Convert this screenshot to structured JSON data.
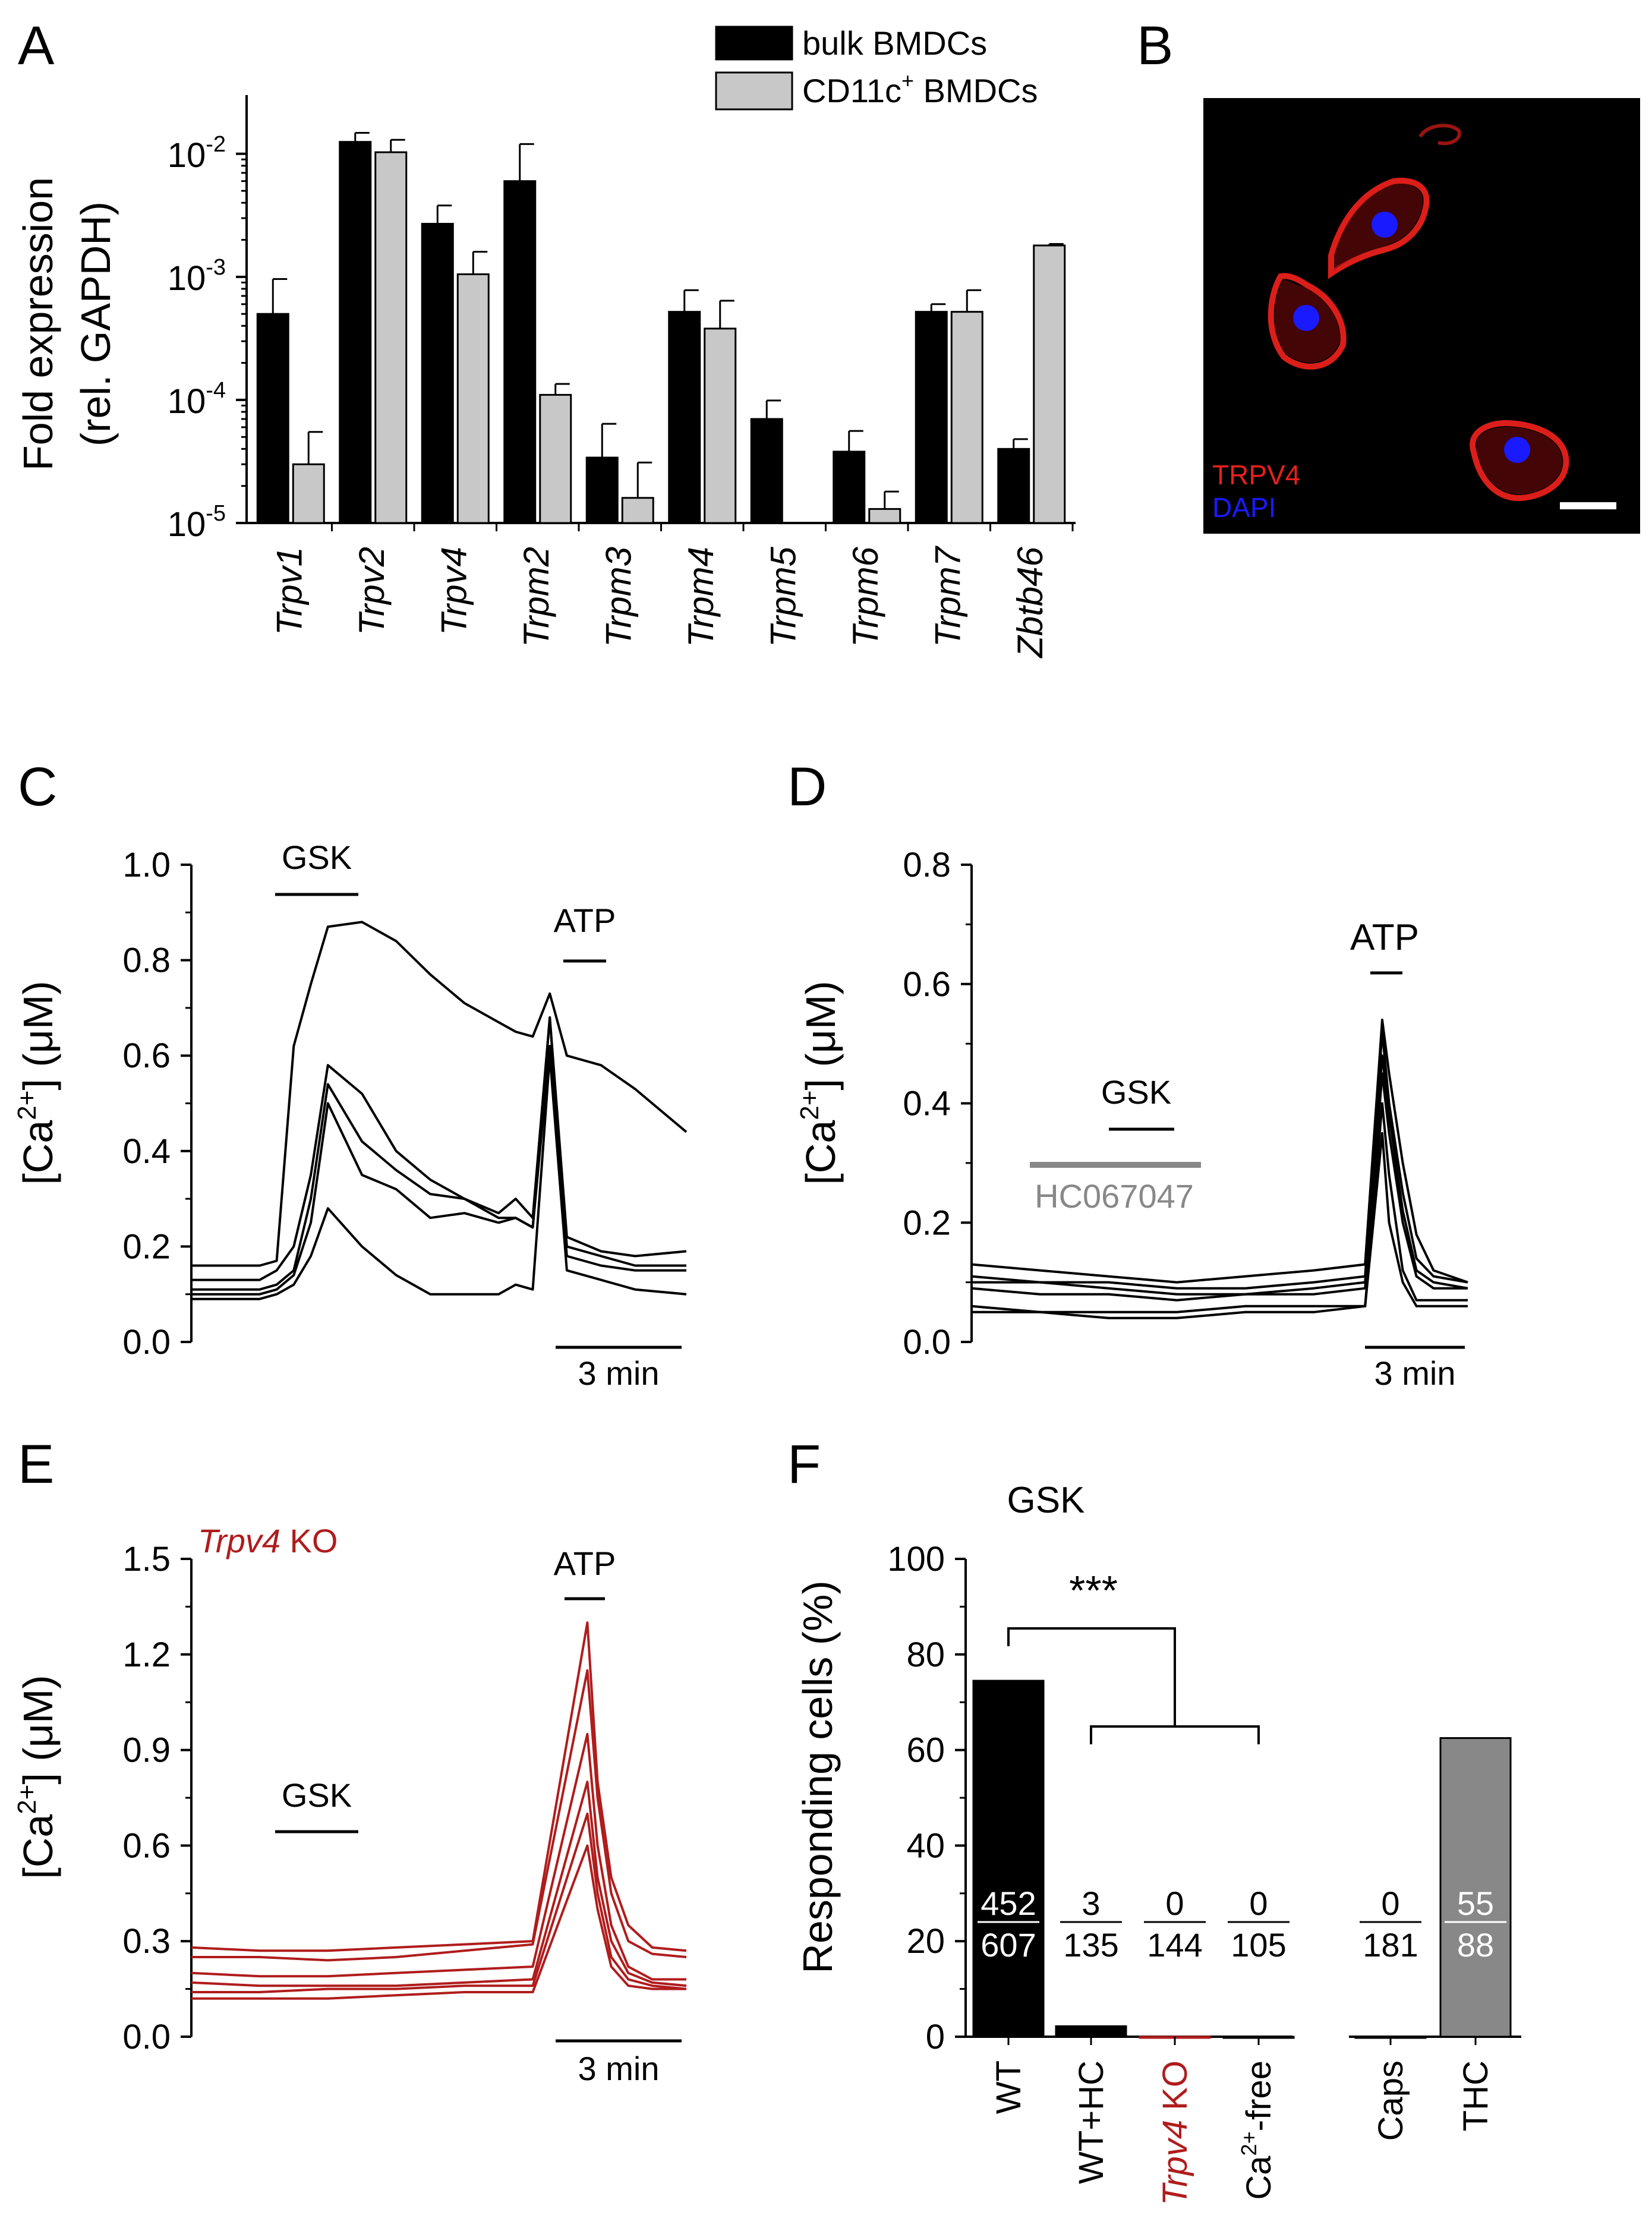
{
  "panels": {
    "A": "A",
    "B": "B",
    "C": "C",
    "D": "D",
    "E": "E",
    "F": "F"
  },
  "chart_data": [
    {
      "panel": "A",
      "type": "bar",
      "ylabel_line1": "Fold expression",
      "ylabel_line2": "(rel. GAPDH)",
      "yscale": "log",
      "ylim": [
        1e-05,
        0.03
      ],
      "yticks": [
        {
          "base": "10",
          "exp": "-5",
          "value": 1e-05
        },
        {
          "base": "10",
          "exp": "-4",
          "value": 0.0001
        },
        {
          "base": "10",
          "exp": "-3",
          "value": 0.001
        },
        {
          "base": "10",
          "exp": "-2",
          "value": 0.01
        }
      ],
      "categories": [
        "Trpv1",
        "Trpv2",
        "Trpv4",
        "Trpm2",
        "Trpm3",
        "Trpm4",
        "Trpm5",
        "Trpm6",
        "Trpm7",
        "Zbtb46"
      ],
      "legend": {
        "position": "top-right",
        "entry1": "bulk BMDCs",
        "entry2_pre": "CD11c",
        "entry2_sup": "+",
        "entry2_post": " BMDCs"
      },
      "series": [
        {
          "name": "bulk BMDCs",
          "color": "#000000",
          "values": [
            0.0005,
            0.0125,
            0.0027,
            0.006,
            3.4e-05,
            0.00052,
            7e-05,
            3.8e-05,
            0.00052,
            4e-05
          ],
          "errors": [
            0.00096,
            0.0148,
            0.0038,
            0.012,
            6.4e-05,
            0.00078,
            9.9e-05,
            5.6e-05,
            0.0006,
            4.8e-05
          ]
        },
        {
          "name": "CD11c+ BMDCs",
          "color": "#c8c8c8",
          "values": [
            3e-05,
            0.0103,
            0.00105,
            0.00011,
            1.6e-05,
            0.00038,
            null,
            1.3e-05,
            0.00052,
            0.0018
          ],
          "errors": [
            5.5e-05,
            0.013,
            0.0016,
            0.000135,
            3.1e-05,
            0.00064,
            null,
            1.8e-05,
            0.00078,
            0.00185
          ]
        }
      ]
    },
    {
      "panel": "C",
      "type": "line",
      "ylabel_pre": "[Ca",
      "ylabel_sup": "2+",
      "ylabel_post": "] (μM)",
      "ylim": [
        0,
        1.0
      ],
      "yticks": [
        "0.0",
        "0.2",
        "0.4",
        "0.6",
        "0.8",
        "1.0"
      ],
      "scale_bar": "3 min",
      "stimuli": [
        {
          "label": "GSK"
        },
        {
          "label": "ATP"
        }
      ],
      "color": "#000000",
      "x_minutes": [
        0,
        2,
        2.5,
        3,
        3.5,
        4,
        5,
        6,
        7,
        8,
        9,
        9.5,
        10,
        10.5,
        11,
        12,
        13,
        14.5
      ],
      "series": [
        [
          0.16,
          0.16,
          0.17,
          0.62,
          0.75,
          0.87,
          0.88,
          0.84,
          0.77,
          0.71,
          0.67,
          0.65,
          0.64,
          0.73,
          0.6,
          0.58,
          0.53,
          0.44
        ],
        [
          0.13,
          0.13,
          0.15,
          0.2,
          0.35,
          0.58,
          0.52,
          0.4,
          0.34,
          0.3,
          0.27,
          0.3,
          0.26,
          0.68,
          0.2,
          0.18,
          0.16,
          0.16
        ],
        [
          0.11,
          0.11,
          0.12,
          0.15,
          0.3,
          0.54,
          0.42,
          0.36,
          0.31,
          0.3,
          0.26,
          0.26,
          0.24,
          0.68,
          0.22,
          0.19,
          0.18,
          0.19
        ],
        [
          0.1,
          0.1,
          0.11,
          0.14,
          0.25,
          0.5,
          0.35,
          0.32,
          0.26,
          0.27,
          0.25,
          0.26,
          0.24,
          0.62,
          0.18,
          0.16,
          0.15,
          0.15
        ],
        [
          0.09,
          0.09,
          0.1,
          0.12,
          0.18,
          0.28,
          0.2,
          0.14,
          0.1,
          0.1,
          0.1,
          0.12,
          0.11,
          0.6,
          0.15,
          0.13,
          0.11,
          0.1
        ]
      ]
    },
    {
      "panel": "D",
      "type": "line",
      "ylabel_pre": "[Ca",
      "ylabel_sup": "2+",
      "ylabel_post": "] (μM)",
      "ylim": [
        0,
        0.8
      ],
      "yticks": [
        "0.0",
        "0.2",
        "0.4",
        "0.6",
        "0.8"
      ],
      "scale_bar": "3 min",
      "stimuli": [
        {
          "label": "GSK"
        },
        {
          "label": "HC067047"
        },
        {
          "label": "ATP"
        }
      ],
      "color": "#000000",
      "x_minutes": [
        0,
        2,
        4,
        6,
        8,
        10,
        11.5,
        12,
        12.2,
        12.6,
        13,
        13.5,
        14.5
      ],
      "series": [
        [
          0.13,
          0.12,
          0.11,
          0.1,
          0.11,
          0.12,
          0.13,
          0.54,
          0.45,
          0.3,
          0.18,
          0.12,
          0.1
        ],
        [
          0.11,
          0.1,
          0.1,
          0.09,
          0.09,
          0.1,
          0.11,
          0.52,
          0.4,
          0.25,
          0.14,
          0.11,
          0.1
        ],
        [
          0.1,
          0.1,
          0.09,
          0.08,
          0.08,
          0.09,
          0.1,
          0.48,
          0.38,
          0.22,
          0.12,
          0.1,
          0.09
        ],
        [
          0.09,
          0.08,
          0.08,
          0.07,
          0.08,
          0.08,
          0.09,
          0.45,
          0.35,
          0.2,
          0.11,
          0.09,
          0.09
        ],
        [
          0.06,
          0.05,
          0.05,
          0.05,
          0.06,
          0.06,
          0.06,
          0.4,
          0.28,
          0.12,
          0.07,
          0.07,
          0.07
        ],
        [
          0.05,
          0.05,
          0.04,
          0.04,
          0.05,
          0.05,
          0.06,
          0.35,
          0.2,
          0.1,
          0.06,
          0.06,
          0.06
        ]
      ]
    },
    {
      "panel": "E",
      "type": "line",
      "annotation_italic": "Trpv4",
      "annotation_rest": " KO",
      "ylabel_pre": "[Ca",
      "ylabel_sup": "2+",
      "ylabel_post": "] (μM)",
      "ylim": [
        0,
        1.5
      ],
      "yticks": [
        "0.0",
        "0.3",
        "0.6",
        "0.9",
        "1.2",
        "1.5"
      ],
      "scale_bar": "3 min",
      "stimuli": [
        {
          "label": "GSK"
        },
        {
          "label": "ATP"
        }
      ],
      "color": "#b01c1c",
      "x_minutes": [
        0,
        2,
        4,
        6,
        8,
        10,
        11.6,
        11.9,
        12.3,
        12.8,
        13.5,
        14.5
      ],
      "series": [
        [
          0.28,
          0.27,
          0.27,
          0.28,
          0.29,
          0.3,
          1.3,
          0.8,
          0.5,
          0.35,
          0.28,
          0.27
        ],
        [
          0.25,
          0.25,
          0.24,
          0.25,
          0.27,
          0.29,
          1.15,
          0.75,
          0.45,
          0.3,
          0.26,
          0.25
        ],
        [
          0.2,
          0.19,
          0.19,
          0.2,
          0.21,
          0.22,
          0.95,
          0.6,
          0.35,
          0.22,
          0.18,
          0.18
        ],
        [
          0.17,
          0.16,
          0.16,
          0.16,
          0.17,
          0.18,
          0.8,
          0.5,
          0.3,
          0.2,
          0.17,
          0.16
        ],
        [
          0.14,
          0.14,
          0.15,
          0.15,
          0.16,
          0.16,
          0.7,
          0.45,
          0.25,
          0.18,
          0.16,
          0.15
        ],
        [
          0.12,
          0.12,
          0.12,
          0.13,
          0.14,
          0.14,
          0.6,
          0.4,
          0.22,
          0.16,
          0.15,
          0.15
        ]
      ]
    },
    {
      "panel": "F",
      "type": "bar",
      "title": "GSK",
      "ylabel": "Responding cells (%)",
      "ylim": [
        0,
        100
      ],
      "yticks": [
        "0",
        "20",
        "40",
        "60",
        "80",
        "100"
      ],
      "significance": "***",
      "categories": [
        {
          "label": "WT",
          "value": 74.5,
          "color": "#000000",
          "num": "452",
          "den": "607"
        },
        {
          "label": "WT+HC",
          "value": 2.2,
          "color": "#000000",
          "num": "3",
          "den": "135"
        },
        {
          "label_italic": "Trpv4",
          "label_rest": " KO",
          "value": 0,
          "color": "#b01c1c",
          "num": "0",
          "den": "144"
        },
        {
          "label_pre": "Ca",
          "label_sup": "2+",
          "label_post": "-free",
          "value": 0,
          "color": "#000000",
          "num": "0",
          "den": "105"
        },
        {
          "label": "Caps",
          "value": 0,
          "color": "#000000",
          "num": "0",
          "den": "181"
        },
        {
          "label": "THC",
          "value": 62.5,
          "color": "#888888",
          "num": "55",
          "den": "88"
        }
      ]
    }
  ],
  "image_B": {
    "label_red": "TRPV4",
    "label_blue": "DAPI",
    "color_red": "#e8201c",
    "color_blue": "#1a1aff"
  }
}
